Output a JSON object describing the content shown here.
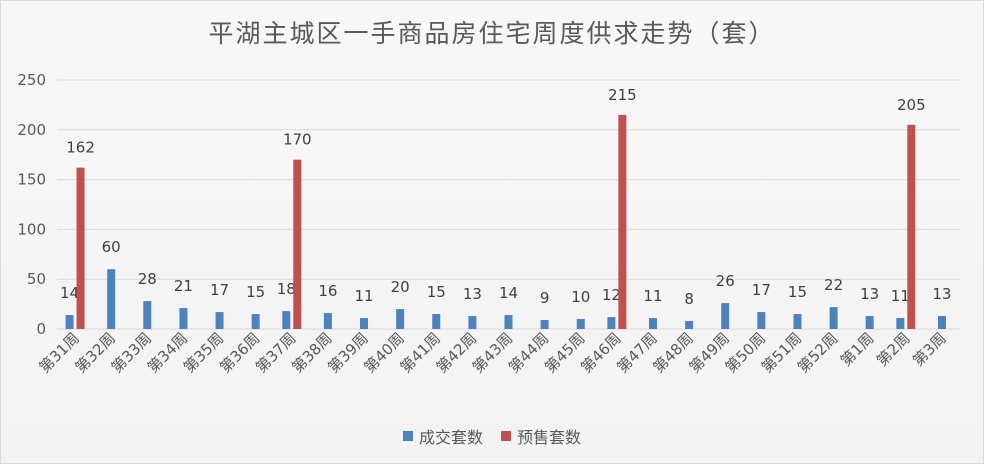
{
  "chart_data": {
    "type": "bar",
    "title": "平湖主城区一手商品房住宅周度供求走势（套）",
    "categories": [
      "第31周",
      "第32周",
      "第33周",
      "第34周",
      "第35周",
      "第36周",
      "第37周",
      "第38周",
      "第39周",
      "第40周",
      "第41周",
      "第42周",
      "第43周",
      "第44周",
      "第45周",
      "第46周",
      "第47周",
      "第48周",
      "第49周",
      "第50周",
      "第51周",
      "第52周",
      "第1周",
      "第2周",
      "第3周"
    ],
    "series": [
      {
        "name": "成交套数",
        "color": "#4f81bd",
        "values": [
          14,
          60,
          28,
          21,
          17,
          15,
          18,
          16,
          11,
          20,
          15,
          13,
          14,
          9,
          10,
          12,
          11,
          8,
          26,
          17,
          15,
          22,
          13,
          11,
          13
        ]
      },
      {
        "name": "预售套数",
        "color": "#c0504d",
        "values": [
          162,
          null,
          null,
          null,
          null,
          null,
          170,
          null,
          null,
          null,
          null,
          null,
          null,
          null,
          null,
          215,
          null,
          null,
          null,
          null,
          null,
          null,
          null,
          205,
          null
        ]
      }
    ],
    "y_ticks": [
      0,
      50,
      100,
      150,
      200,
      250
    ],
    "ylim": [
      0,
      250
    ],
    "grid": true,
    "legend_position": "bottom"
  }
}
